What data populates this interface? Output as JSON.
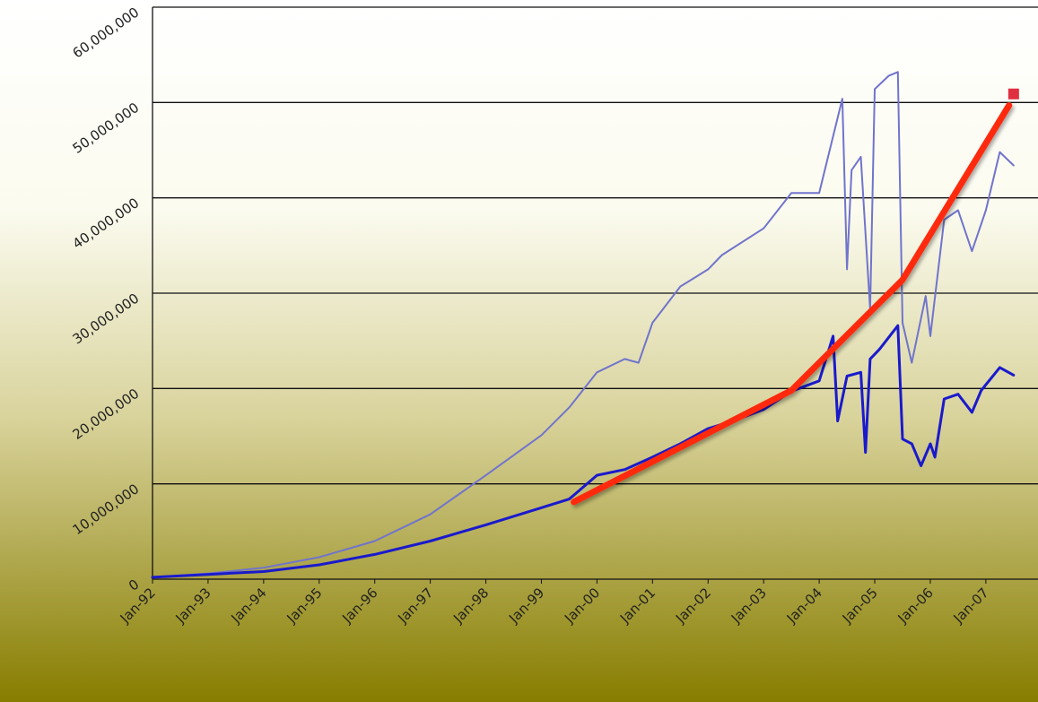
{
  "chart_data": {
    "type": "line",
    "xlim": [
      "1992-01",
      "2007-08"
    ],
    "xticks": [
      {
        "value": "1992-01",
        "label": "Jan-92"
      },
      {
        "value": "1993-01",
        "label": "Jan-93"
      },
      {
        "value": "1994-01",
        "label": "Jan-94"
      },
      {
        "value": "1995-01",
        "label": "Jan-95"
      },
      {
        "value": "1996-01",
        "label": "Jan-96"
      },
      {
        "value": "1997-01",
        "label": "Jan-97"
      },
      {
        "value": "1998-01",
        "label": "Jan-98"
      },
      {
        "value": "1999-01",
        "label": "Jan-99"
      },
      {
        "value": "2000-01",
        "label": "Jan-00"
      },
      {
        "value": "2001-01",
        "label": "Jan-01"
      },
      {
        "value": "2002-01",
        "label": "Jan-02"
      },
      {
        "value": "2003-01",
        "label": "Jan-03"
      },
      {
        "value": "2004-01",
        "label": "Jan-04"
      },
      {
        "value": "2005-01",
        "label": "Jan-05"
      },
      {
        "value": "2006-01",
        "label": "Jan-06"
      },
      {
        "value": "2007-01",
        "label": "Jan-07"
      }
    ],
    "ylim": [
      0,
      60000000
    ],
    "yticks": [
      0,
      {
        "value": 10000000,
        "label": "10,000,000"
      },
      {
        "value": 20000000,
        "label": "20,000,000"
      },
      {
        "value": 30000000,
        "label": "30,000,000"
      },
      {
        "value": 40000000,
        "label": "40,000,000"
      },
      {
        "value": 50000000,
        "label": "50,000,000"
      },
      {
        "value": 60000000,
        "label": "60,000,000"
      }
    ],
    "grid": true,
    "series": [
      {
        "color": "#7074cc",
        "width": 2,
        "x": [
          "1992-01",
          "1993-01",
          "1994-01",
          "1995-01",
          "1996-01",
          "1997-01",
          "1998-01",
          "1999-01",
          "1999-07",
          "2000-01",
          "2000-07",
          "2000-10",
          "2001-01",
          "2001-07",
          "2002-01",
          "2002-04",
          "2003-01",
          "2003-07",
          "2004-01",
          "2004-06",
          "2004-07",
          "2004-08",
          "2004-10",
          "2004-12",
          "2005-01",
          "2005-04",
          "2005-06",
          "2005-07",
          "2005-09",
          "2005-12",
          "2006-01",
          "2006-04",
          "2006-07",
          "2006-10",
          "2007-01",
          "2007-04",
          "2007-07"
        ],
        "values": [
          200000,
          600000,
          1200000,
          2300000,
          4000000,
          6800000,
          10900000,
          15100000,
          18000000,
          21700000,
          23100000,
          22700000,
          26900000,
          30700000,
          32500000,
          34000000,
          36800000,
          40500000,
          40500000,
          50400000,
          32500000,
          42900000,
          44300000,
          28300000,
          51400000,
          52800000,
          53200000,
          26900000,
          22700000,
          29700000,
          25500000,
          37700000,
          38700000,
          34400000,
          38700000,
          44800000,
          43400000
        ]
      },
      {
        "color": "#1a1acc",
        "width": 3,
        "x": [
          "1992-01",
          "1993-01",
          "1994-01",
          "1995-01",
          "1996-01",
          "1997-01",
          "1998-01",
          "1999-01",
          "1999-07",
          "2000-01",
          "2000-07",
          "2001-01",
          "2001-07",
          "2002-01",
          "2002-07",
          "2003-01",
          "2003-07",
          "2004-01",
          "2004-04",
          "2004-05",
          "2004-07",
          "2004-10",
          "2004-11",
          "2004-12",
          "2005-02",
          "2005-06",
          "2005-07",
          "2005-09",
          "2005-11",
          "2006-01",
          "2006-02",
          "2006-04",
          "2006-07",
          "2006-10",
          "2006-12",
          "2007-04",
          "2007-07"
        ],
        "values": [
          200000,
          500000,
          800000,
          1500000,
          2600000,
          4000000,
          5700000,
          7500000,
          8400000,
          10900000,
          11500000,
          12800000,
          14200000,
          15800000,
          16700000,
          17800000,
          19700000,
          20800000,
          25500000,
          16600000,
          21300000,
          21700000,
          13300000,
          23100000,
          24100000,
          26600000,
          14700000,
          14200000,
          11900000,
          14200000,
          12800000,
          18900000,
          19400000,
          17500000,
          19800000,
          22200000,
          21400000
        ]
      },
      {
        "color": "#ff2a0a",
        "width": 7,
        "x": [
          "1999-08",
          "2003-07",
          "2005-07",
          "2007-06"
        ],
        "values": [
          8100000,
          19800000,
          31400000,
          49700000
        ]
      },
      {
        "color": "#e03040",
        "marker": "square",
        "x": [
          "2007-07"
        ],
        "values": [
          50900000
        ]
      }
    ]
  }
}
